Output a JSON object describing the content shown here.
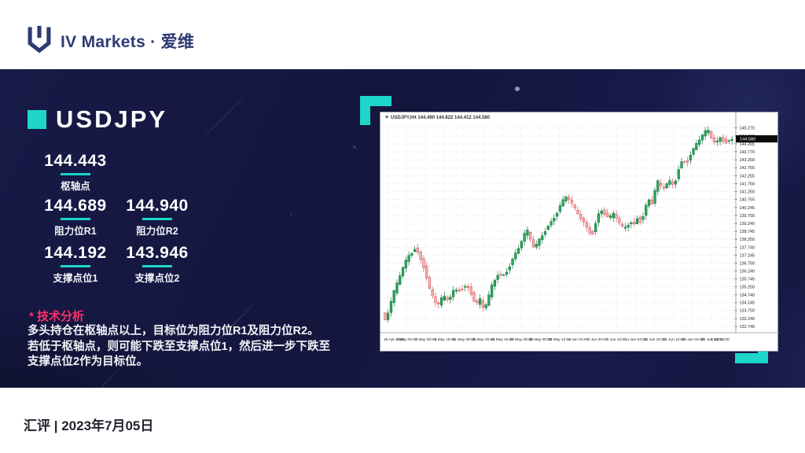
{
  "header": {
    "brand": "IV Markets · 爱维"
  },
  "main": {
    "symbol": "USDJPY",
    "pivot": {
      "value": "144.443",
      "label": "枢轴点"
    },
    "levels": [
      {
        "value": "144.689",
        "label": "阻力位R1"
      },
      {
        "value": "144.940",
        "label": "阻力位R2"
      },
      {
        "value": "144.192",
        "label": "支撑点位1"
      },
      {
        "value": "143.946",
        "label": "支撑点位2"
      }
    ],
    "analysis": {
      "title": "* 技术分析",
      "lines": [
        "多头持仓在枢轴点以上，目标位为阻力位R1及阻力位R2。",
        "若低于枢轴点，则可能下跌至支撑点位1，然后进一步下跌至",
        "支撑点位2作为目标位。"
      ]
    }
  },
  "footer": {
    "text": "汇评 | 2023年7月05日"
  },
  "colors": {
    "accent_teal": "#1bd6c9",
    "accent_pink": "#ff2d6c",
    "brand_navy": "#2e3a72",
    "background_navy": "#14163e"
  },
  "chart_data": {
    "type": "candlestick",
    "title": "USDJPY,H4 144.490 144.822 144.412 144.580",
    "timeframe": "H4",
    "current_price": "144.580",
    "price_range": [
      132.55,
      145.55
    ],
    "y_axis_labels": [
      "145.270",
      "144.760",
      "144.265",
      "143.770",
      "143.260",
      "142.765",
      "142.255",
      "141.760",
      "141.250",
      "140.755",
      "140.245",
      "139.750",
      "139.240",
      "138.745",
      "138.250",
      "137.740",
      "137.245",
      "136.750",
      "136.240",
      "135.745",
      "135.250",
      "134.740",
      "134.245",
      "133.750",
      "133.240",
      "132.745"
    ],
    "x_axis_labels": [
      "26 Apr 2023",
      "1 May 00:00",
      "4 May 00:00",
      "8 May 16:00",
      "11 May 08:00",
      "16 May 00:00",
      "18 May 16:00",
      "23 May 08:00",
      "26 May 00:00",
      "30 May 12:00",
      "2 Jun 04:00",
      "6 Jun 20:00",
      "9 Jun 12:00",
      "14 Jun 04:00",
      "16 Jun 20:00",
      "21 Jun 12:00",
      "26 Jun 04:00",
      "28 Jun 20:00",
      "3 Jul 12:00"
    ],
    "num_candles": 118,
    "candle_colors": {
      "up_fill": "#2aa75c",
      "up_stroke": "#1b7a43",
      "down_fill": "#f2b1b1",
      "down_stroke": "#d85c5c"
    },
    "price_path": [
      [
        0.0,
        133.6
      ],
      [
        0.01,
        133.1
      ],
      [
        0.03,
        134.6
      ],
      [
        0.055,
        136.2
      ],
      [
        0.075,
        137.2
      ],
      [
        0.095,
        137.75
      ],
      [
        0.105,
        137.3
      ],
      [
        0.12,
        136.5
      ],
      [
        0.135,
        135.1
      ],
      [
        0.15,
        134.3
      ],
      [
        0.16,
        134.05
      ],
      [
        0.175,
        134.6
      ],
      [
        0.19,
        134.4
      ],
      [
        0.205,
        135.05
      ],
      [
        0.22,
        135.1
      ],
      [
        0.235,
        135.3
      ],
      [
        0.25,
        135.2
      ],
      [
        0.26,
        134.45
      ],
      [
        0.27,
        134.1
      ],
      [
        0.28,
        134.4
      ],
      [
        0.29,
        133.8
      ],
      [
        0.3,
        134.2
      ],
      [
        0.315,
        135.4
      ],
      [
        0.33,
        136.05
      ],
      [
        0.345,
        135.95
      ],
      [
        0.36,
        136.45
      ],
      [
        0.375,
        137.1
      ],
      [
        0.39,
        137.7
      ],
      [
        0.405,
        138.45
      ],
      [
        0.415,
        138.7
      ],
      [
        0.425,
        138.15
      ],
      [
        0.435,
        137.6
      ],
      [
        0.445,
        138.05
      ],
      [
        0.455,
        138.45
      ],
      [
        0.47,
        139.0
      ],
      [
        0.485,
        139.45
      ],
      [
        0.5,
        140.0
      ],
      [
        0.515,
        140.6
      ],
      [
        0.525,
        140.9
      ],
      [
        0.535,
        140.7
      ],
      [
        0.55,
        140.1
      ],
      [
        0.56,
        139.8
      ],
      [
        0.575,
        139.35
      ],
      [
        0.59,
        138.8
      ],
      [
        0.6,
        138.6
      ],
      [
        0.61,
        139.3
      ],
      [
        0.62,
        139.95
      ],
      [
        0.63,
        140.15
      ],
      [
        0.64,
        139.7
      ],
      [
        0.65,
        139.5
      ],
      [
        0.66,
        139.85
      ],
      [
        0.67,
        139.55
      ],
      [
        0.68,
        139.1
      ],
      [
        0.69,
        138.85
      ],
      [
        0.7,
        139.15
      ],
      [
        0.71,
        139.35
      ],
      [
        0.72,
        139.2
      ],
      [
        0.73,
        139.7
      ],
      [
        0.74,
        139.4
      ],
      [
        0.75,
        140.0
      ],
      [
        0.76,
        140.85
      ],
      [
        0.77,
        140.4
      ],
      [
        0.78,
        141.3
      ],
      [
        0.79,
        141.9
      ],
      [
        0.8,
        141.35
      ],
      [
        0.81,
        141.6
      ],
      [
        0.82,
        141.9
      ],
      [
        0.83,
        141.7
      ],
      [
        0.84,
        142.1
      ],
      [
        0.85,
        142.95
      ],
      [
        0.86,
        143.3
      ],
      [
        0.87,
        143.1
      ],
      [
        0.88,
        143.55
      ],
      [
        0.89,
        143.9
      ],
      [
        0.9,
        144.3
      ],
      [
        0.91,
        144.6
      ],
      [
        0.92,
        144.9
      ],
      [
        0.932,
        145.05
      ],
      [
        0.945,
        144.45
      ],
      [
        0.955,
        144.3
      ],
      [
        0.965,
        144.7
      ],
      [
        0.975,
        144.55
      ],
      [
        0.985,
        144.4
      ],
      [
        1.0,
        144.58
      ]
    ]
  }
}
